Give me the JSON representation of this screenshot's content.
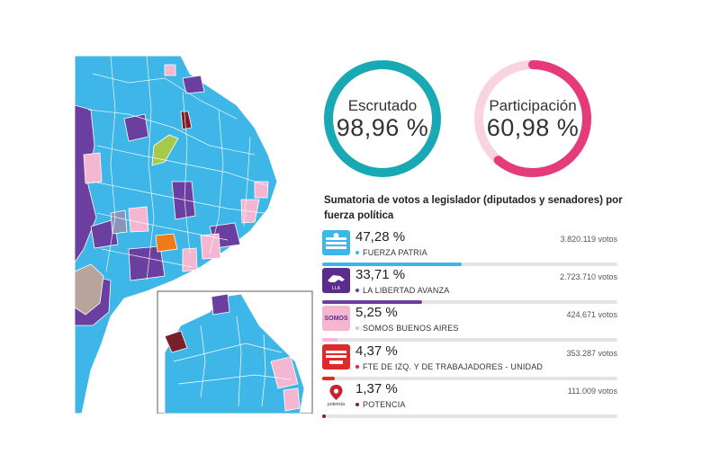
{
  "colors": {
    "teal": "#19a9b5",
    "pink": "#e63b7a",
    "fuerza_patria": "#3eb6e8",
    "libertad_avanza": "#6b3fa0",
    "somos": "#f4b6d0",
    "izquierda": "#e02a2a",
    "potencia": "#8b1d2c"
  },
  "escrutado": {
    "label": "Escrutado",
    "value_text": "98,96 %",
    "value": 98.96
  },
  "participacion": {
    "label": "Participación",
    "value_text": "60,98 %",
    "value": 60.98
  },
  "section_title": "Sumatoria de votos a legislador (diputados y senadores) por fuerza política",
  "parties": [
    {
      "pct": "47,28 %",
      "name": "FUERZA PATRIA",
      "votes": "3.820.119 votos",
      "share": 47.28,
      "color": "#3eb6e8",
      "logo_icon": "sun-stripes-icon"
    },
    {
      "pct": "33,71 %",
      "name": "LA LIBERTAD AVANZA",
      "votes": "2.723.710 votos",
      "share": 33.71,
      "color": "#6b3fa0",
      "logo_icon": "lion-icon",
      "logo_text": "LLA"
    },
    {
      "pct": "5,25 %",
      "name": "SOMOS BUENOS AIRES",
      "votes": "424.671 votos",
      "share": 5.25,
      "color": "#f4b6d0",
      "logo_icon": "somos-logo-icon",
      "logo_text": "SOMOS"
    },
    {
      "pct": "4,37 %",
      "name": "FTE DE IZQ. Y DE TRABAJADORES - UNIDAD",
      "votes": "353.287 votos",
      "share": 4.37,
      "color": "#e02a2a",
      "logo_icon": "fit-logo-icon"
    },
    {
      "pct": "1,37 %",
      "name": "POTENCIA",
      "votes": "111.009 votos",
      "share": 1.37,
      "color": "#8b1d2c",
      "logo_icon": "pin-icon",
      "logo_text": "potencia"
    }
  ]
}
